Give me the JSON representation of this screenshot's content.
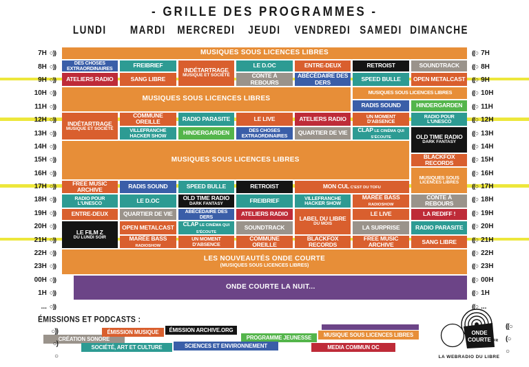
{
  "title": "- GRILLE DES PROGRAMMES -",
  "days": [
    "LUNDI",
    "MARDI",
    "MERCREDI",
    "JEUDI",
    "VENDREDI",
    "SAMEDI",
    "DIMANCHE"
  ],
  "hours": [
    "7H",
    "8H",
    "9H",
    "10H",
    "11H",
    "12H",
    "13H",
    "14H",
    "15H",
    "16H",
    "17H",
    "18H",
    "19H",
    "20H",
    "21H",
    "22H",
    "23H",
    "00H",
    "1H",
    "..."
  ],
  "highlight_hours": [
    "9H",
    "12H",
    "17H",
    "21H"
  ],
  "highlight_rows": [
    2,
    5,
    10,
    14
  ],
  "icons": {
    "speaker_right": "○))",
    "speaker_left": "((○",
    "fade_left": [
      "○))",
      "○)",
      "○"
    ],
    "fade_right": [
      "((○",
      "(○",
      "○"
    ]
  },
  "colors": {
    "orange": "#E78E38",
    "music": "#D95F2E",
    "culture": "#2D9B93",
    "science": "#3A5EA8",
    "jeunesse": "#54B54B",
    "media": "#BE2B38",
    "archive": "#141414",
    "creation": "#9A938B",
    "nuit": "#6C4487",
    "highlight": "#EDE73B"
  },
  "schedule": [
    {
      "d": 1,
      "span": 7,
      "r": 0,
      "rs": 1,
      "c": "orange",
      "label": "MUSIQUES SOUS LICENCES LIBRES",
      "big": true
    },
    {
      "d": 1,
      "r": 1,
      "c": "science",
      "label": "DES CHOSES EXTRAORDINAIRES",
      "small": true
    },
    {
      "d": 2,
      "r": 1,
      "c": "culture",
      "label": "FREIBRIEF"
    },
    {
      "d": 3,
      "r": 1,
      "rs": 2,
      "c": "music",
      "label": "INDÉTARTRAGE",
      "sub": "MUSIQUE ET SOCIÉTÉ"
    },
    {
      "d": 4,
      "r": 1,
      "c": "culture",
      "label": "LE D.OC"
    },
    {
      "d": 5,
      "r": 1,
      "c": "music",
      "label": "ENTRE-DEUX"
    },
    {
      "d": 6,
      "r": 1,
      "c": "archive",
      "label": "RETROIST"
    },
    {
      "d": 7,
      "r": 1,
      "c": "creation",
      "label": "SOUNDTRACK"
    },
    {
      "d": 1,
      "r": 2,
      "c": "media",
      "label": "ATELIERS RADIO"
    },
    {
      "d": 2,
      "r": 2,
      "c": "music",
      "label": "SANG LIBRE"
    },
    {
      "d": 4,
      "r": 2,
      "c": "creation",
      "label": "CONTE À REBOURS"
    },
    {
      "d": 5,
      "r": 2,
      "c": "science",
      "label": "ABÉCÉDAIRE DES DERS"
    },
    {
      "d": 6,
      "r": 2,
      "c": "culture",
      "label": "SPEED BULLE"
    },
    {
      "d": 7,
      "r": 2,
      "c": "music",
      "label": "OPEN METALCAST"
    },
    {
      "d": 1,
      "span": 5,
      "r": 3,
      "rs": 2,
      "c": "orange",
      "label": "MUSIQUES SOUS LICENCES LIBRES",
      "big": true
    },
    {
      "d": 6,
      "span": 2,
      "r": 3,
      "c": "orange",
      "label": "MUSIQUES SOUS LICENCES LIBRES",
      "small": true
    },
    {
      "d": 6,
      "r": 4,
      "c": "science",
      "label": "RADIS SOUND"
    },
    {
      "d": 7,
      "r": 4,
      "c": "jeunesse",
      "label": "HINDERGARDEN"
    },
    {
      "d": 1,
      "r": 5,
      "rs": 2,
      "c": "music",
      "label": "INDÉTARTRAGE",
      "sub": "MUSIQUE ET SOCIÉTÉ"
    },
    {
      "d": 2,
      "r": 5,
      "c": "music",
      "label": "COMMUNE OREILLE"
    },
    {
      "d": 3,
      "r": 5,
      "c": "culture",
      "label": "RADIO PARASITE"
    },
    {
      "d": 4,
      "r": 5,
      "c": "music",
      "label": "LE LIVE"
    },
    {
      "d": 5,
      "r": 5,
      "c": "media",
      "label": "ATELIERS RADIO"
    },
    {
      "d": 6,
      "r": 5,
      "c": "music",
      "label": "UN MOMENT D'ABSENCE",
      "small": true
    },
    {
      "d": 7,
      "r": 5,
      "c": "culture",
      "label": "RADIO POUR L'UNESCO",
      "small": true
    },
    {
      "d": 2,
      "r": 6,
      "c": "culture",
      "label": "VILLEFRANCHE HACKER SHOW",
      "small": true
    },
    {
      "d": 3,
      "r": 6,
      "c": "jeunesse",
      "label": "HINDERGARDEN"
    },
    {
      "d": 4,
      "r": 6,
      "c": "science",
      "label": "DES CHOSES EXTRAORDINAIRES",
      "small": true
    },
    {
      "d": 5,
      "r": 6,
      "c": "creation",
      "label": "QUARTIER DE VIE"
    },
    {
      "d": 6,
      "r": 6,
      "c": "culture",
      "label": "CLAP",
      "subInline": "LE CINÉMA QUI S'ÉCOUTE"
    },
    {
      "d": 7,
      "r": 6,
      "rs": 2,
      "c": "archive",
      "label": "OLD TIME RADIO",
      "sub": "DARK FANTASY"
    },
    {
      "d": 1,
      "span": 6,
      "r": 7,
      "rs": 3,
      "c": "orange",
      "label": "MUSIQUES SOUS LICENCES LIBRES",
      "big": true
    },
    {
      "d": 7,
      "r": 8,
      "c": "music",
      "label": "BLACKFOX RECORDS"
    },
    {
      "d": 7,
      "r": 9,
      "rs": 2,
      "c": "orange",
      "label": "MUSIQUES SOUS",
      "sub": "LICENCES LIBRES",
      "small": true
    },
    {
      "d": 1,
      "r": 10,
      "c": "music",
      "label": "FREE MUSIC ARCHIVE"
    },
    {
      "d": 2,
      "r": 10,
      "c": "science",
      "label": "RADIS SOUND"
    },
    {
      "d": 3,
      "r": 10,
      "c": "culture",
      "label": "SPEED BULLE"
    },
    {
      "d": 4,
      "r": 10,
      "c": "archive",
      "label": "RETROIST"
    },
    {
      "d": 5,
      "span": 2,
      "r": 10,
      "c": "music",
      "label": "MON CUL",
      "subInline": "C'EST DU TOFU"
    },
    {
      "d": 1,
      "r": 11,
      "c": "culture",
      "label": "RADIO POUR L'UNESCO",
      "small": true
    },
    {
      "d": 2,
      "r": 11,
      "c": "culture",
      "label": "LE D.OC"
    },
    {
      "d": 3,
      "r": 11,
      "c": "archive",
      "label": "OLD TIME RADIO",
      "sub": "DARK FANTASY"
    },
    {
      "d": 4,
      "r": 11,
      "c": "culture",
      "label": "FREIBRIEF"
    },
    {
      "d": 5,
      "r": 11,
      "c": "culture",
      "label": "VILLEFRANCHE HACKER SHOW",
      "small": true
    },
    {
      "d": 6,
      "r": 11,
      "c": "music",
      "label": "MARÉE BASS",
      "subInline": "RADIOSHOW"
    },
    {
      "d": 7,
      "r": 11,
      "c": "creation",
      "label": "CONTE À REBOURS"
    },
    {
      "d": 1,
      "r": 12,
      "c": "music",
      "label": "ENTRE-DEUX"
    },
    {
      "d": 2,
      "r": 12,
      "c": "creation",
      "label": "QUARTIER DE VIE"
    },
    {
      "d": 3,
      "r": 12,
      "c": "science",
      "label": "ABÉCÉDAIRE DES DERS",
      "small": true
    },
    {
      "d": 4,
      "r": 12,
      "c": "media",
      "label": "ATELIERS RADIO"
    },
    {
      "d": 5,
      "r": 12,
      "rs": 2,
      "c": "music",
      "label": "LABEL DU LIBRE",
      "sub": "DU MOIS"
    },
    {
      "d": 6,
      "r": 12,
      "c": "music",
      "label": "LE LIVE"
    },
    {
      "d": 7,
      "r": 12,
      "c": "media",
      "label": "LA REDIFF !"
    },
    {
      "d": 1,
      "r": 13,
      "rs": 2,
      "c": "archive",
      "label": "LE FILM Z",
      "sub": "DU LUNDI SOIR"
    },
    {
      "d": 2,
      "r": 13,
      "c": "music",
      "label": "OPEN METALCAST"
    },
    {
      "d": 3,
      "r": 13,
      "c": "culture",
      "label": "CLAP",
      "subInline": "LE CINÉMA QUI S'ÉCOUTE"
    },
    {
      "d": 4,
      "r": 13,
      "c": "creation",
      "label": "SOUNDTRACK"
    },
    {
      "d": 6,
      "r": 13,
      "c": "creation",
      "label": "LA SURPRISE"
    },
    {
      "d": 7,
      "r": 13,
      "c": "culture",
      "label": "RADIO PARASITE"
    },
    {
      "d": 2,
      "r": 14,
      "c": "music",
      "label": "MARÉE BASS",
      "subInline": "RADIOSHOW"
    },
    {
      "d": 3,
      "r": 14,
      "c": "music",
      "label": "UN MOMENT D'ABSENCE",
      "small": true
    },
    {
      "d": 4,
      "r": 14,
      "c": "music",
      "label": "COMMUNE OREILLE"
    },
    {
      "d": 5,
      "r": 14,
      "c": "music",
      "label": "BLACKFOX RECORDS"
    },
    {
      "d": 6,
      "r": 14,
      "c": "music",
      "label": "FREE MUSIC ARCHIVE"
    },
    {
      "d": 7,
      "r": 14,
      "c": "music",
      "label": "SANG LIBRE"
    },
    {
      "d": 1,
      "span": 7,
      "r": 15,
      "rs": 2,
      "c": "orange",
      "label": "LES NOUVEAUTÉS ONDE COURTE",
      "sub": "(MUSIQUES SOUS LICENCES LIBRES)",
      "big": true
    },
    {
      "d": 1,
      "span": 7,
      "r": 17,
      "rs": 2,
      "c": "nuit",
      "label": "ONDE COURTE LA NUIT...",
      "big": true,
      "insetL": true
    }
  ],
  "legend": {
    "title": "ÉMISSIONS ET PODCASTS :",
    "items": [
      {
        "label": "CRÉATION SONORE",
        "color": "creation"
      },
      {
        "label": "ÉMISSION MUSIQUE",
        "color": "music"
      },
      {
        "label": "ÉMISSION  ARCHIVE.ORG",
        "color": "archive"
      },
      {
        "label": "PROGRAMME JEUNESSE",
        "color": "jeunesse"
      },
      {
        "label": "MUSIQUE SOUS LICENCES LIBRES",
        "color": "orange"
      },
      {
        "label": "SOCIÉTÉ, ART ET CULTURE",
        "color": "culture"
      },
      {
        "label": "SCIENCES ET ENVIRONNEMENT",
        "color": "science"
      },
      {
        "label": "MEDIA COMMUN OC",
        "color": "media"
      }
    ]
  },
  "logo": {
    "line1": "ONDE",
    "line2": "COURTE",
    "suffix": ".FR",
    "tagline": "LA WEBRADIO DU LIBRE"
  }
}
